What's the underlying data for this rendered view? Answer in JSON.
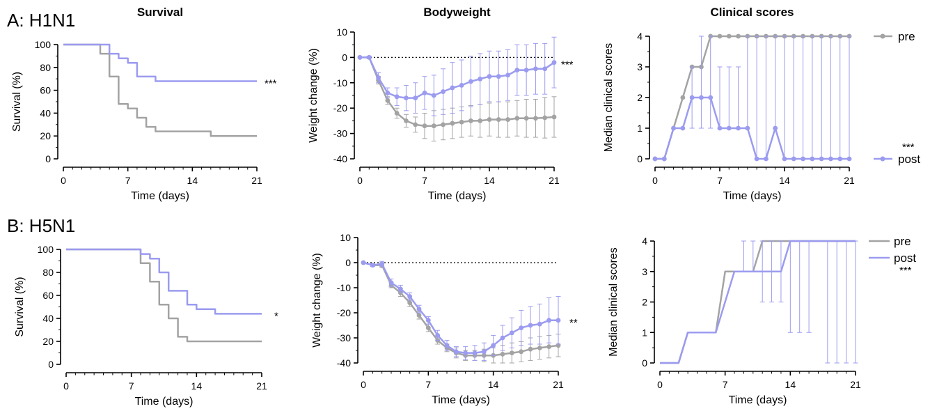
{
  "colors": {
    "pre": "#a3a3a3",
    "post": "#9b9bf0",
    "axis": "#000000"
  },
  "rows": [
    {
      "label": "A: H1N1"
    },
    {
      "label": "B: H5N1"
    }
  ],
  "legend": {
    "A": {
      "pre": "pre",
      "post": "post",
      "sig": "***"
    },
    "B": {
      "pre": "pre",
      "post": "post",
      "sig": "***"
    }
  },
  "chart_data": [
    {
      "id": "A-survival",
      "type": "line",
      "step": true,
      "title": "Survival",
      "xlabel": "Time (days)",
      "ylabel": "Survival (%)",
      "xlim": [
        0,
        21
      ],
      "ylim": [
        0,
        100
      ],
      "xticks": [
        0,
        7,
        14,
        21
      ],
      "yticks": [
        0,
        20,
        40,
        60,
        80,
        100
      ],
      "significance": "***",
      "series": [
        {
          "key": "pre",
          "points": [
            [
              0,
              100
            ],
            [
              4,
              100
            ],
            [
              4,
              92
            ],
            [
              5,
              92
            ],
            [
              5,
              72
            ],
            [
              6,
              72
            ],
            [
              6,
              48
            ],
            [
              7,
              48
            ],
            [
              7,
              44
            ],
            [
              8,
              44
            ],
            [
              8,
              36
            ],
            [
              9,
              36
            ],
            [
              9,
              28
            ],
            [
              10,
              28
            ],
            [
              10,
              24
            ],
            [
              16,
              24
            ],
            [
              16,
              20
            ],
            [
              21,
              20
            ]
          ]
        },
        {
          "key": "post",
          "points": [
            [
              0,
              100
            ],
            [
              5,
              100
            ],
            [
              5,
              92
            ],
            [
              6,
              92
            ],
            [
              6,
              88
            ],
            [
              7,
              88
            ],
            [
              7,
              84
            ],
            [
              8,
              84
            ],
            [
              8,
              72
            ],
            [
              10,
              72
            ],
            [
              10,
              68
            ],
            [
              21,
              68
            ]
          ]
        }
      ]
    },
    {
      "id": "A-bodyweight",
      "type": "line",
      "title": "Bodyweight",
      "xlabel": "Time (days)",
      "ylabel": "Weight change (%)",
      "xlim": [
        0,
        21
      ],
      "ylim": [
        -40,
        10
      ],
      "xticks": [
        0,
        7,
        14,
        21
      ],
      "yticks": [
        -40,
        -30,
        -20,
        -10,
        0,
        10
      ],
      "reference_line": 0,
      "significance": "***",
      "series": [
        {
          "key": "pre",
          "x": [
            0,
            1,
            2,
            3,
            4,
            5,
            6,
            7,
            8,
            9,
            10,
            11,
            12,
            13,
            14,
            15,
            16,
            17,
            18,
            19,
            20,
            21
          ],
          "y": [
            0,
            0,
            -9,
            -17,
            -22,
            -25,
            -26.5,
            -27,
            -27,
            -26.5,
            -26,
            -25.5,
            -25,
            -25,
            -24.5,
            -24.5,
            -24.5,
            -24,
            -24,
            -24,
            -23.8,
            -23.5
          ],
          "err": [
            0,
            0.5,
            1.5,
            1.5,
            2,
            2.5,
            3,
            5,
            6,
            6,
            6,
            6,
            6,
            6.5,
            6.5,
            7,
            7,
            7,
            7.5,
            7.5,
            8,
            8
          ]
        },
        {
          "key": "post",
          "x": [
            0,
            1,
            2,
            3,
            4,
            5,
            6,
            7,
            8,
            9,
            10,
            11,
            12,
            13,
            14,
            15,
            16,
            17,
            18,
            19,
            20,
            21
          ],
          "y": [
            0,
            0,
            -8,
            -14,
            -15.5,
            -16,
            -16,
            -14,
            -15,
            -13.5,
            -12,
            -11,
            -9.5,
            -8.5,
            -7.5,
            -7.5,
            -7,
            -5,
            -5,
            -4.5,
            -4.5,
            -2
          ],
          "err": [
            0,
            0.5,
            2,
            2,
            3.5,
            5,
            6,
            6.5,
            8,
            9,
            10,
            10,
            10,
            10,
            10,
            10,
            10,
            10,
            10,
            10,
            10,
            10
          ]
        }
      ]
    },
    {
      "id": "A-clinical",
      "type": "line",
      "title": "Clinical scores",
      "xlabel": "Time (days)",
      "ylabel": "Median clinical scores",
      "xlim": [
        0,
        21
      ],
      "ylim": [
        0,
        4
      ],
      "xticks": [
        0,
        7,
        14,
        21
      ],
      "yticks": [
        0,
        1,
        2,
        3,
        4
      ],
      "series": [
        {
          "key": "pre",
          "x": [
            0,
            1,
            2,
            3,
            4,
            5,
            6,
            7,
            8,
            9,
            10,
            11,
            12,
            13,
            14,
            15,
            16,
            17,
            18,
            19,
            20,
            21
          ],
          "y": [
            0,
            0,
            1,
            2,
            3,
            3,
            4,
            4,
            4,
            4,
            4,
            4,
            4,
            4,
            4,
            4,
            4,
            4,
            4,
            4,
            4,
            4
          ]
        },
        {
          "key": "post",
          "x": [
            0,
            1,
            2,
            3,
            4,
            5,
            6,
            7,
            8,
            9,
            10,
            11,
            12,
            13,
            14,
            15,
            16,
            17,
            18,
            19,
            20,
            21
          ],
          "y": [
            0,
            0,
            1,
            1,
            2,
            2,
            2,
            1,
            1,
            1,
            1,
            0,
            0,
            1,
            0,
            0,
            0,
            0,
            0,
            0,
            0,
            0
          ],
          "err_low": [
            0,
            0,
            1,
            1,
            1,
            1,
            1,
            1,
            1,
            1,
            1,
            0,
            0,
            1,
            0,
            0,
            0,
            0,
            0,
            0,
            0,
            0
          ],
          "err_high": [
            0,
            0,
            1,
            1,
            3,
            4,
            4,
            3,
            3,
            3,
            4,
            4,
            4,
            4,
            4,
            4,
            4,
            4,
            4,
            4,
            4,
            4
          ]
        }
      ]
    },
    {
      "id": "B-survival",
      "type": "line",
      "step": true,
      "title": "",
      "xlabel": "Time (days)",
      "ylabel": "Survival (%)",
      "xlim": [
        0,
        21
      ],
      "ylim": [
        0,
        100
      ],
      "xticks": [
        0,
        7,
        14,
        21
      ],
      "yticks": [
        0,
        20,
        40,
        60,
        80,
        100
      ],
      "significance": "*",
      "series": [
        {
          "key": "pre",
          "points": [
            [
              0,
              100
            ],
            [
              8,
              100
            ],
            [
              8,
              88
            ],
            [
              9,
              88
            ],
            [
              9,
              72
            ],
            [
              10,
              72
            ],
            [
              10,
              52
            ],
            [
              11,
              52
            ],
            [
              11,
              40
            ],
            [
              12,
              40
            ],
            [
              12,
              24
            ],
            [
              13,
              24
            ],
            [
              13,
              20
            ],
            [
              21,
              20
            ]
          ]
        },
        {
          "key": "post",
          "points": [
            [
              0,
              100
            ],
            [
              8,
              100
            ],
            [
              8,
              96
            ],
            [
              9,
              96
            ],
            [
              9,
              92
            ],
            [
              10,
              92
            ],
            [
              10,
              80
            ],
            [
              11,
              80
            ],
            [
              11,
              64
            ],
            [
              13,
              64
            ],
            [
              13,
              52
            ],
            [
              14,
              52
            ],
            [
              14,
              48
            ],
            [
              16,
              48
            ],
            [
              16,
              44
            ],
            [
              21,
              44
            ]
          ]
        }
      ]
    },
    {
      "id": "B-bodyweight",
      "type": "line",
      "title": "",
      "xlabel": "Time (days)",
      "ylabel": "Weight change (%)",
      "xlim": [
        0,
        21
      ],
      "ylim": [
        -40,
        10
      ],
      "xticks": [
        0,
        7,
        14,
        21
      ],
      "yticks": [
        -40,
        -30,
        -20,
        -10,
        0,
        10
      ],
      "reference_line": 0,
      "significance": "**",
      "series": [
        {
          "key": "pre",
          "x": [
            0,
            1,
            2,
            3,
            4,
            5,
            6,
            7,
            8,
            9,
            10,
            11,
            12,
            13,
            14,
            15,
            16,
            17,
            18,
            19,
            20,
            21
          ],
          "y": [
            0,
            -1,
            -1,
            -9,
            -12,
            -16,
            -21,
            -26,
            -31,
            -34,
            -36,
            -37,
            -37,
            -37,
            -37,
            -36.5,
            -36,
            -35.5,
            -34.5,
            -34,
            -33.5,
            -33
          ],
          "err": [
            0,
            0.5,
            1,
            1,
            1.5,
            1.5,
            1.5,
            1.5,
            1.5,
            1.5,
            2,
            2,
            2,
            2.5,
            3,
            3.5,
            4,
            4,
            4.5,
            4.5,
            4.5,
            4.5
          ]
        },
        {
          "key": "post",
          "x": [
            0,
            1,
            2,
            3,
            4,
            5,
            6,
            7,
            8,
            9,
            10,
            11,
            12,
            13,
            14,
            15,
            16,
            17,
            18,
            19,
            20,
            21
          ],
          "y": [
            0,
            -1,
            -0.5,
            -8,
            -10.5,
            -13.5,
            -18.5,
            -23,
            -29,
            -33,
            -35.5,
            -36,
            -36,
            -35.5,
            -33,
            -30,
            -28,
            -26,
            -25,
            -24.5,
            -23,
            -23
          ],
          "err": [
            0,
            0.5,
            1,
            1.5,
            1.5,
            1.5,
            1.5,
            1.5,
            2,
            2,
            2,
            2.5,
            3,
            3.5,
            4,
            5,
            6,
            7,
            7.5,
            8,
            9,
            9.5
          ]
        }
      ]
    },
    {
      "id": "B-clinical",
      "type": "line",
      "title": "",
      "xlabel": "Time (days)",
      "ylabel": "Median clinical scores",
      "xlim": [
        0,
        21
      ],
      "ylim": [
        0,
        4
      ],
      "xticks": [
        0,
        7,
        14,
        21
      ],
      "yticks": [
        0,
        1,
        2,
        3,
        4
      ],
      "series": [
        {
          "key": "pre",
          "points": [
            [
              0,
              0
            ],
            [
              2,
              0
            ],
            [
              3,
              1
            ],
            [
              6,
              1
            ],
            [
              7,
              3
            ],
            [
              10,
              3
            ],
            [
              11,
              4
            ],
            [
              21,
              4
            ]
          ]
        },
        {
          "key": "post",
          "points": [
            [
              0,
              0
            ],
            [
              2,
              0
            ],
            [
              3,
              1
            ],
            [
              6,
              1
            ],
            [
              8,
              3
            ],
            [
              13,
              3
            ],
            [
              14,
              4
            ],
            [
              21,
              4
            ]
          ],
          "err_x": [
            9,
            10,
            11,
            12,
            13,
            14,
            15,
            16,
            18,
            19,
            20,
            21
          ],
          "err_low": [
            3,
            3,
            2,
            2,
            2,
            1,
            1,
            1,
            0,
            0,
            0,
            0
          ],
          "err_high": [
            4,
            4,
            4,
            4,
            4,
            4,
            4,
            4,
            4,
            4,
            4,
            4
          ]
        }
      ]
    }
  ]
}
